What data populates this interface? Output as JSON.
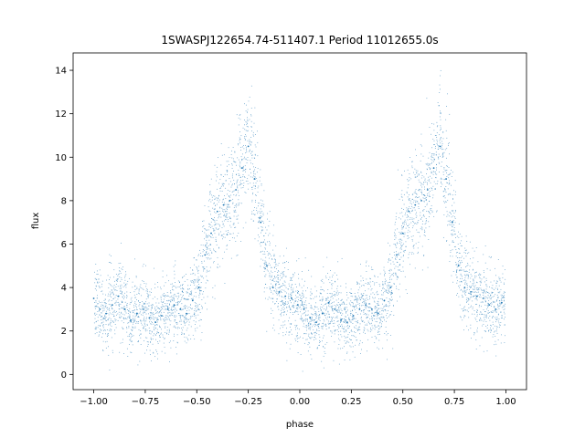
{
  "chart_data": {
    "type": "scatter",
    "title": "1SWASPJ122654.74-511407.1 Period 11012655.0s",
    "xlabel": "phase",
    "ylabel": "flux",
    "xlim": [
      -1.1,
      1.1
    ],
    "ylim": [
      -0.7,
      14.8
    ],
    "grid": false,
    "x_ticks": [
      -1.0,
      -0.75,
      -0.5,
      -0.25,
      0.0,
      0.25,
      0.5,
      0.75,
      1.0
    ],
    "x_tick_labels": [
      "−1.00",
      "−0.75",
      "−0.50",
      "−0.25",
      "0.00",
      "0.25",
      "0.50",
      "0.75",
      "1.00"
    ],
    "y_ticks": [
      0,
      2,
      4,
      6,
      8,
      10,
      12,
      14
    ],
    "y_tick_labels": [
      "0",
      "2",
      "4",
      "6",
      "8",
      "10",
      "12",
      "14"
    ],
    "marker_color": "#1f77b4",
    "series": [
      {
        "x": [
          -1.0,
          -0.97,
          -0.94,
          -0.91,
          -0.88,
          -0.85,
          -0.82,
          -0.79,
          -0.76,
          -0.73,
          -0.7,
          -0.67,
          -0.64,
          -0.61,
          -0.58,
          -0.55,
          -0.52,
          -0.49,
          -0.46,
          -0.43,
          -0.4,
          -0.37,
          -0.34,
          -0.31,
          -0.28,
          -0.25,
          -0.22,
          -0.19,
          -0.16,
          -0.13,
          -0.1,
          -0.07,
          -0.04,
          -0.01,
          0.02,
          0.05,
          0.08,
          0.11,
          0.14,
          0.17,
          0.2,
          0.23,
          0.26,
          0.29,
          0.32,
          0.35,
          0.38,
          0.41,
          0.44,
          0.47,
          0.5,
          0.53,
          0.56,
          0.59,
          0.62,
          0.65,
          0.68,
          0.71,
          0.74,
          0.77,
          0.8,
          0.83,
          0.86,
          0.89,
          0.92,
          0.95,
          0.98
        ],
        "y": [
          3.5,
          3.0,
          2.8,
          3.2,
          3.6,
          3.0,
          2.5,
          2.8,
          3.0,
          2.6,
          2.4,
          2.7,
          3.0,
          3.2,
          3.0,
          2.8,
          3.4,
          4.0,
          5.5,
          6.5,
          7.5,
          7.8,
          8.0,
          8.5,
          9.5,
          10.5,
          9.0,
          7.0,
          5.0,
          4.0,
          3.8,
          3.6,
          3.5,
          3.2,
          3.0,
          2.6,
          2.4,
          2.8,
          3.3,
          3.0,
          2.5,
          2.4,
          2.7,
          3.0,
          3.2,
          3.0,
          2.8,
          3.4,
          4.0,
          5.5,
          6.5,
          7.5,
          7.8,
          8.0,
          8.5,
          9.5,
          10.5,
          9.0,
          7.0,
          5.0,
          4.0,
          3.8,
          3.6,
          3.5,
          3.2,
          3.0,
          3.3
        ]
      }
    ]
  }
}
